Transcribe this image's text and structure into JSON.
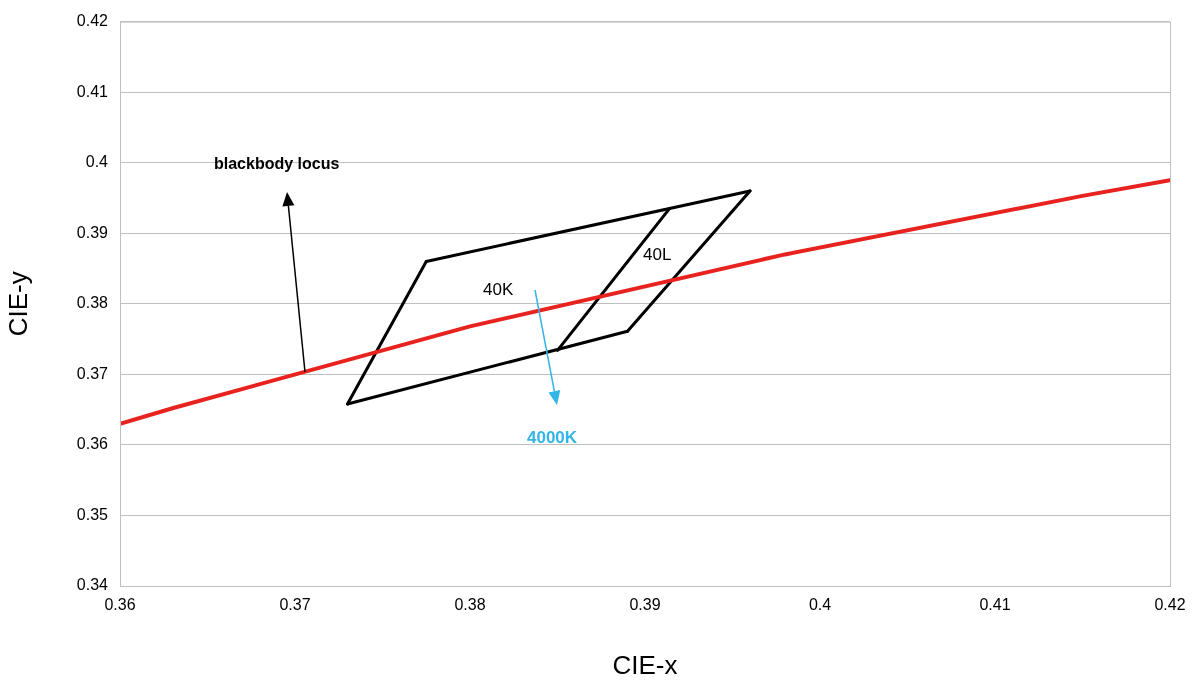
{
  "chart_data": {
    "type": "line",
    "xlabel": "CIE-x",
    "ylabel": "CIE-y",
    "xlim": [
      0.36,
      0.42
    ],
    "xticks": [
      0.36,
      0.37,
      0.38,
      0.39,
      0.4,
      0.41,
      0.42
    ],
    "ylim": [
      0.34,
      0.42
    ],
    "yticks": [
      0.34,
      0.35,
      0.36,
      0.37,
      0.38,
      0.39,
      0.4,
      0.41,
      0.42
    ],
    "grid": "y",
    "legend": false,
    "marker": "none",
    "series": [
      {
        "color": "#e8231f",
        "x": [
          0.36,
          0.363,
          0.38,
          0.398,
          0.415,
          0.42
        ],
        "values": [
          0.363,
          0.3652,
          0.3768,
          0.387,
          0.3953,
          0.3975
        ]
      },
      {
        "color": "#000000",
        "x": [
          0.3775,
          0.396
        ],
        "values": [
          0.386,
          0.396
        ]
      },
      {
        "color": "#000000",
        "x": [
          0.373,
          0.3775
        ],
        "values": [
          0.3658,
          0.386
        ]
      },
      {
        "color": "#000000",
        "x": [
          0.373,
          0.389
        ],
        "values": [
          0.3658,
          0.3761
        ]
      },
      {
        "color": "#000000",
        "x": [
          0.389,
          0.396
        ],
        "values": [
          0.3761,
          0.396
        ]
      },
      {
        "color": "#000000",
        "x": [
          0.385,
          0.3914
        ],
        "values": [
          0.3734,
          0.3935
        ]
      }
    ],
    "annotations": [
      "blackbody locus",
      "40K",
      "40L",
      "4000K"
    ]
  }
}
